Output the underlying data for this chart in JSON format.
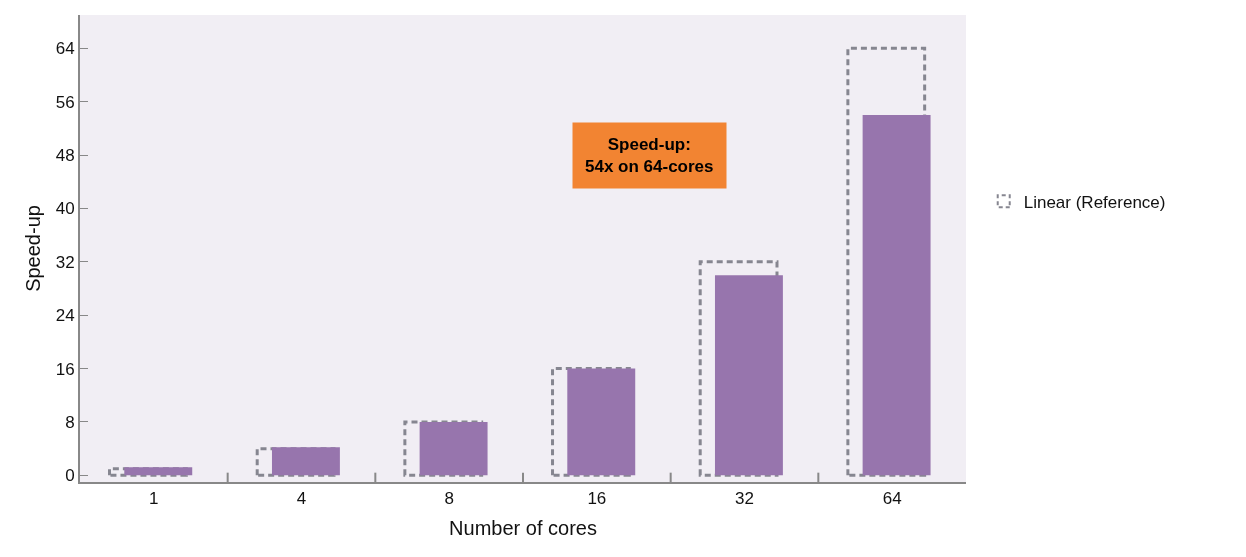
{
  "chart_data": {
    "type": "bar",
    "xlabel": "Number of cores",
    "ylabel": "Speed-up",
    "categories": [
      "1",
      "4",
      "8",
      "16",
      "32",
      "64"
    ],
    "series": [
      {
        "name": "Linear (Reference)",
        "color": "#868690",
        "line_style": "dashed",
        "values": [
          1,
          4,
          8,
          16,
          32,
          64
        ]
      },
      {
        "color": "#9775ad",
        "values": [
          1.2,
          4.2,
          8,
          16,
          30,
          54
        ]
      }
    ],
    "ylim": [
      -1,
      69
    ],
    "yticks": [
      0,
      8,
      16,
      24,
      32,
      40,
      48,
      56,
      64
    ],
    "grid": false,
    "legend": "right",
    "annotations": [
      "Speed-up:\n54x on 64-cores"
    ]
  }
}
